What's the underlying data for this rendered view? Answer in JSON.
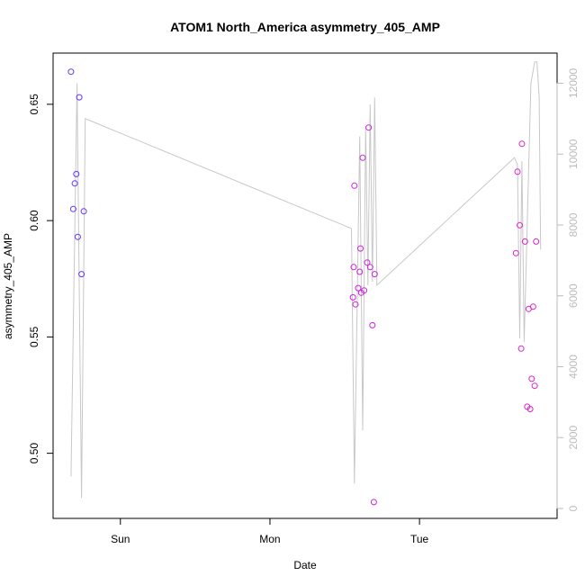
{
  "chart_data": {
    "type": "scatter",
    "title": "ATOM1 North_America asymmetry_405_AMP",
    "xlabel": "Date",
    "ylabel": "asymmetry_405_AMP",
    "x_unit": "days",
    "xlim": [
      -0.45,
      2.92
    ],
    "ylim": [
      0.472,
      0.672
    ],
    "y2lim": [
      -280,
      12850
    ],
    "x_ticks": [
      {
        "value": 0,
        "label": "Sun"
      },
      {
        "value": 1,
        "label": "Mon"
      },
      {
        "value": 2,
        "label": "Tue"
      }
    ],
    "y_ticks": [
      {
        "value": 0.5,
        "label": "0.50"
      },
      {
        "value": 0.55,
        "label": "0.55"
      },
      {
        "value": 0.6,
        "label": "0.60"
      },
      {
        "value": 0.65,
        "label": "0.65"
      }
    ],
    "y2_ticks": [
      {
        "value": 0,
        "label": "0"
      },
      {
        "value": 2000,
        "label": "2000"
      },
      {
        "value": 4000,
        "label": "4000"
      },
      {
        "value": 6000,
        "label": "6000"
      },
      {
        "value": 8000,
        "label": "8000"
      },
      {
        "value": 10000,
        "label": "10000"
      },
      {
        "value": 12000,
        "label": "12000"
      }
    ],
    "points": [
      {
        "x": -0.33,
        "y": 0.664,
        "color": "#6633ff"
      },
      {
        "x": -0.315,
        "y": 0.605,
        "color": "#6633ff"
      },
      {
        "x": -0.305,
        "y": 0.616,
        "color": "#6633ff"
      },
      {
        "x": -0.295,
        "y": 0.62,
        "color": "#6633ff"
      },
      {
        "x": -0.285,
        "y": 0.593,
        "color": "#6633ff"
      },
      {
        "x": -0.275,
        "y": 0.653,
        "color": "#6633ff"
      },
      {
        "x": -0.26,
        "y": 0.577,
        "color": "#6633ff"
      },
      {
        "x": -0.245,
        "y": 0.604,
        "color": "#6633ff"
      },
      {
        "x": 1.555,
        "y": 0.567,
        "color": "#cc22dd"
      },
      {
        "x": 1.56,
        "y": 0.58,
        "color": "#cc22dd"
      },
      {
        "x": 1.565,
        "y": 0.615,
        "color": "#cc22dd"
      },
      {
        "x": 1.572,
        "y": 0.564,
        "color": "#cc22dd"
      },
      {
        "x": 1.59,
        "y": 0.571,
        "color": "#cc22dd"
      },
      {
        "x": 1.6,
        "y": 0.578,
        "color": "#cc22dd"
      },
      {
        "x": 1.605,
        "y": 0.588,
        "color": "#cc22dd"
      },
      {
        "x": 1.61,
        "y": 0.569,
        "color": "#cc22dd"
      },
      {
        "x": 1.62,
        "y": 0.627,
        "color": "#cc22dd"
      },
      {
        "x": 1.63,
        "y": 0.57,
        "color": "#cc22dd"
      },
      {
        "x": 1.65,
        "y": 0.582,
        "color": "#cc22dd"
      },
      {
        "x": 1.66,
        "y": 0.64,
        "color": "#cc22dd"
      },
      {
        "x": 1.67,
        "y": 0.58,
        "color": "#cc22dd"
      },
      {
        "x": 1.685,
        "y": 0.555,
        "color": "#cc22dd"
      },
      {
        "x": 1.7,
        "y": 0.577,
        "color": "#cc22dd"
      },
      {
        "x": 1.695,
        "y": 0.479,
        "color": "#cc22dd"
      },
      {
        "x": 2.645,
        "y": 0.586,
        "color": "#dd22cc"
      },
      {
        "x": 2.655,
        "y": 0.621,
        "color": "#dd22cc"
      },
      {
        "x": 2.67,
        "y": 0.598,
        "color": "#dd22cc"
      },
      {
        "x": 2.68,
        "y": 0.545,
        "color": "#dd22cc"
      },
      {
        "x": 2.685,
        "y": 0.633,
        "color": "#dd22cc"
      },
      {
        "x": 2.705,
        "y": 0.591,
        "color": "#dd22cc"
      },
      {
        "x": 2.72,
        "y": 0.52,
        "color": "#dd22cc"
      },
      {
        "x": 2.73,
        "y": 0.562,
        "color": "#dd22cc"
      },
      {
        "x": 2.74,
        "y": 0.519,
        "color": "#dd22cc"
      },
      {
        "x": 2.75,
        "y": 0.532,
        "color": "#dd22cc"
      },
      {
        "x": 2.76,
        "y": 0.563,
        "color": "#dd22cc"
      },
      {
        "x": 2.77,
        "y": 0.529,
        "color": "#dd22cc"
      },
      {
        "x": 2.78,
        "y": 0.591,
        "color": "#dd22cc"
      }
    ],
    "count_series": {
      "color": "#c8c8c8",
      "points": [
        [
          -0.33,
          900
        ],
        [
          -0.29,
          12000
        ],
        [
          -0.26,
          300
        ],
        [
          -0.235,
          11000
        ],
        [
          1.545,
          7900
        ],
        [
          1.565,
          700
        ],
        [
          1.6,
          10500
        ],
        [
          1.62,
          2200
        ],
        [
          1.64,
          10800
        ],
        [
          1.655,
          6300
        ],
        [
          1.67,
          11400
        ],
        [
          1.685,
          6400
        ],
        [
          1.7,
          11600
        ],
        [
          1.715,
          6300
        ],
        [
          2.635,
          9900
        ],
        [
          2.655,
          9700
        ],
        [
          2.67,
          4800
        ],
        [
          2.685,
          9800
        ],
        [
          2.7,
          4700
        ],
        [
          2.745,
          12000
        ],
        [
          2.77,
          12600
        ],
        [
          2.785,
          12600
        ],
        [
          2.8,
          11600
        ],
        [
          2.81,
          7300
        ]
      ]
    }
  }
}
